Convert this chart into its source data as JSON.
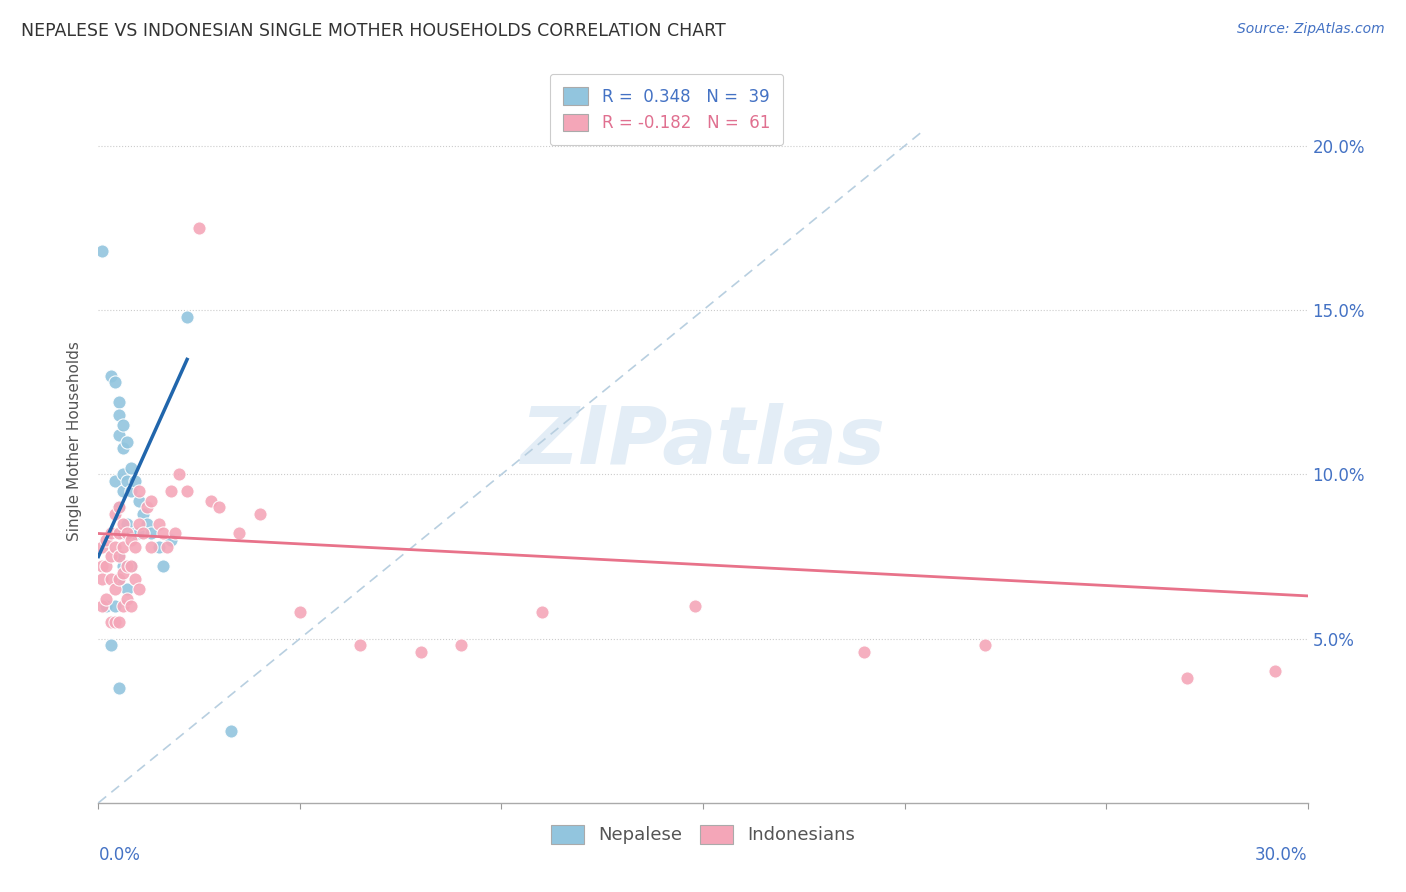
{
  "title": "NEPALESE VS INDONESIAN SINGLE MOTHER HOUSEHOLDS CORRELATION CHART",
  "source": "Source: ZipAtlas.com",
  "ylabel": "Single Mother Households",
  "right_ytick_labels": [
    "5.0%",
    "10.0%",
    "15.0%",
    "20.0%"
  ],
  "right_ytick_vals": [
    0.05,
    0.1,
    0.15,
    0.2
  ],
  "xlim": [
    0.0,
    0.3
  ],
  "ylim": [
    0.0,
    0.22
  ],
  "watermark": "ZIPatlas",
  "legend_nepalese": "R =  0.348   N =  39",
  "legend_indonesians": "R = -0.182   N =  61",
  "nepalese_color": "#92c5de",
  "indonesian_color": "#f4a6b8",
  "nepalese_line_color": "#2166ac",
  "indonesian_line_color": "#e8728a",
  "diagonal_color": "#b8cfe0",
  "nep_x": [
    0.001,
    0.002,
    0.003,
    0.003,
    0.004,
    0.004,
    0.004,
    0.005,
    0.005,
    0.005,
    0.005,
    0.005,
    0.005,
    0.006,
    0.006,
    0.006,
    0.006,
    0.006,
    0.006,
    0.007,
    0.007,
    0.007,
    0.007,
    0.008,
    0.008,
    0.008,
    0.009,
    0.009,
    0.01,
    0.01,
    0.011,
    0.012,
    0.013,
    0.015,
    0.016,
    0.018,
    0.022,
    0.033,
    0.005
  ],
  "nep_y": [
    0.168,
    0.06,
    0.13,
    0.048,
    0.128,
    0.098,
    0.06,
    0.122,
    0.118,
    0.112,
    0.09,
    0.075,
    0.068,
    0.115,
    0.108,
    0.1,
    0.095,
    0.082,
    0.072,
    0.11,
    0.098,
    0.085,
    0.065,
    0.102,
    0.095,
    0.072,
    0.098,
    0.082,
    0.092,
    0.082,
    0.088,
    0.085,
    0.082,
    0.078,
    0.072,
    0.08,
    0.148,
    0.022,
    0.035
  ],
  "ind_x": [
    0.001,
    0.001,
    0.001,
    0.001,
    0.002,
    0.002,
    0.002,
    0.003,
    0.003,
    0.003,
    0.003,
    0.004,
    0.004,
    0.004,
    0.004,
    0.005,
    0.005,
    0.005,
    0.005,
    0.005,
    0.006,
    0.006,
    0.006,
    0.006,
    0.007,
    0.007,
    0.007,
    0.008,
    0.008,
    0.008,
    0.009,
    0.009,
    0.01,
    0.01,
    0.01,
    0.011,
    0.012,
    0.013,
    0.013,
    0.015,
    0.016,
    0.017,
    0.018,
    0.019,
    0.02,
    0.022,
    0.025,
    0.028,
    0.03,
    0.035,
    0.04,
    0.05,
    0.065,
    0.08,
    0.09,
    0.11,
    0.148,
    0.19,
    0.22,
    0.27,
    0.292
  ],
  "ind_y": [
    0.078,
    0.072,
    0.068,
    0.06,
    0.08,
    0.072,
    0.062,
    0.082,
    0.075,
    0.068,
    0.055,
    0.088,
    0.078,
    0.065,
    0.055,
    0.09,
    0.082,
    0.075,
    0.068,
    0.055,
    0.085,
    0.078,
    0.07,
    0.06,
    0.082,
    0.072,
    0.062,
    0.08,
    0.072,
    0.06,
    0.078,
    0.068,
    0.095,
    0.085,
    0.065,
    0.082,
    0.09,
    0.092,
    0.078,
    0.085,
    0.082,
    0.078,
    0.095,
    0.082,
    0.1,
    0.095,
    0.175,
    0.092,
    0.09,
    0.082,
    0.088,
    0.058,
    0.048,
    0.046,
    0.048,
    0.058,
    0.06,
    0.046,
    0.048,
    0.038,
    0.04
  ]
}
